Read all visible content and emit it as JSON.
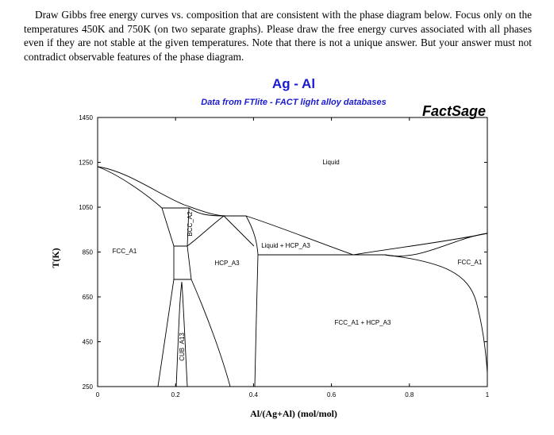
{
  "problem": {
    "text": "Draw Gibbs free energy curves vs. composition that are consistent with the phase diagram below. Focus only on the temperatures 450K and 750K (on two separate graphs). Please draw the free energy curves associated with all phases even if they are not stable at the given temperatures. Note that there is not a unique answer. But your answer must not contradict observable features of the phase diagram."
  },
  "figure": {
    "title": "Ag - Al",
    "subtitle": "Data from FTlite - FACT light alloy databases",
    "brand": "FactSage",
    "x_label": "Al/(Ag+Al) (mol/mol)",
    "y_label": "T(K)",
    "xlim": [
      0,
      1
    ],
    "xticks": [
      0,
      0.2,
      0.4,
      0.6,
      0.8,
      1
    ],
    "ylim": [
      250,
      1450
    ],
    "yticks": [
      250,
      450,
      650,
      850,
      1050,
      1250,
      1450
    ],
    "phases": [
      "Liquid",
      "FCC_A1",
      "BCC_A2",
      "HCP_A3",
      "Liquid + HCP_A3",
      "FCC_A1",
      "FCC_A1 + HCP_A3",
      "CUB_A13"
    ]
  }
}
